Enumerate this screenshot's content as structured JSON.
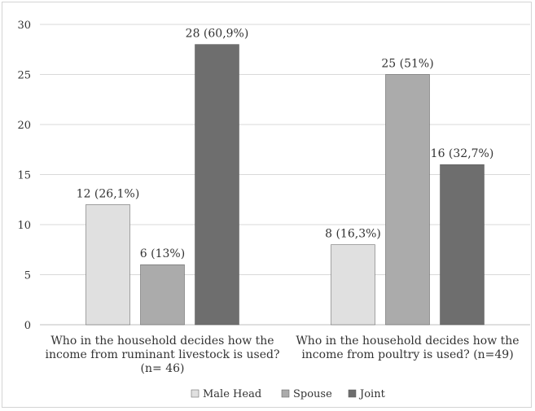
{
  "chart_data": {
    "type": "bar",
    "categories": [
      [
        "Who in the household decides how the",
        "income from ruminant livestock is used?",
        "(n= 46)"
      ],
      [
        "Who in the household decides how the",
        "income from poultry is used? (n=49)"
      ]
    ],
    "series": [
      {
        "name": "Male Head",
        "color": "#e0e0e0",
        "values": [
          12,
          8
        ],
        "labels": [
          "12 (26,1%)",
          "8 (16,3%)"
        ]
      },
      {
        "name": "Spouse",
        "color": "#ababab",
        "values": [
          6,
          25
        ],
        "labels": [
          "6 (13%)",
          "25 (51%)"
        ]
      },
      {
        "name": "Joint",
        "color": "#6e6e6e",
        "values": [
          28,
          16
        ],
        "labels": [
          "28 (60,9%)",
          "16 (32,7%)"
        ]
      }
    ],
    "ylim": [
      0,
      30
    ],
    "yticks": [
      0,
      5,
      10,
      15,
      20,
      25,
      30
    ],
    "grid": true,
    "legend": "bottom"
  }
}
